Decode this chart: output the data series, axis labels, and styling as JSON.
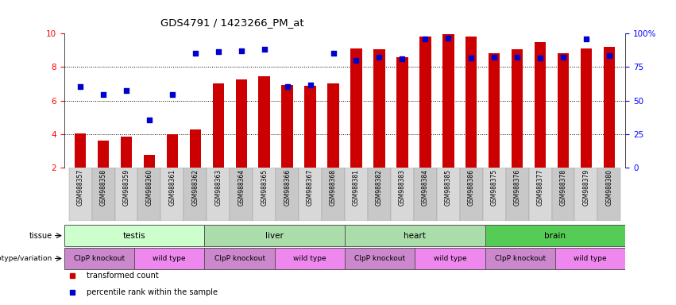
{
  "title": "GDS4791 / 1423266_PM_at",
  "samples": [
    "GSM988357",
    "GSM988358",
    "GSM988359",
    "GSM988360",
    "GSM988361",
    "GSM988362",
    "GSM988363",
    "GSM988364",
    "GSM988365",
    "GSM988366",
    "GSM988367",
    "GSM988368",
    "GSM988381",
    "GSM988382",
    "GSM988383",
    "GSM988384",
    "GSM988385",
    "GSM988386",
    "GSM988375",
    "GSM988376",
    "GSM988377",
    "GSM988378",
    "GSM988379",
    "GSM988380"
  ],
  "bar_values": [
    4.05,
    3.6,
    3.85,
    2.75,
    4.0,
    4.3,
    7.05,
    7.25,
    7.45,
    6.95,
    6.9,
    7.05,
    9.1,
    9.05,
    8.6,
    9.8,
    9.95,
    9.8,
    8.85,
    9.05,
    9.5,
    8.85,
    9.1,
    9.2
  ],
  "dot_values": [
    6.85,
    6.35,
    6.6,
    4.85,
    6.35,
    8.85,
    8.9,
    8.95,
    9.05,
    6.85,
    6.95,
    8.85,
    8.4,
    8.6,
    8.5,
    9.7,
    9.75,
    8.55,
    8.6,
    8.6,
    8.55,
    8.6,
    9.7,
    8.7
  ],
  "bar_color": "#cc0000",
  "dot_color": "#0000cc",
  "ylim_min": 2,
  "ylim_max": 10,
  "yticks": [
    2,
    4,
    6,
    8,
    10
  ],
  "dotted_lines": [
    4,
    6,
    8
  ],
  "y2ticks_vals": [
    0,
    25,
    50,
    75,
    100
  ],
  "y2tick_labels": [
    "0",
    "25",
    "50",
    "75",
    "100%"
  ],
  "tissue_groups": [
    {
      "label": "testis",
      "start": 0,
      "end": 6,
      "color": "#ccffcc"
    },
    {
      "label": "liver",
      "start": 6,
      "end": 12,
      "color": "#aaddaa"
    },
    {
      "label": "heart",
      "start": 12,
      "end": 18,
      "color": "#aaddaa"
    },
    {
      "label": "brain",
      "start": 18,
      "end": 24,
      "color": "#55cc55"
    }
  ],
  "genotype_groups": [
    {
      "label": "ClpP knockout",
      "start": 0,
      "end": 3,
      "color": "#cc88cc"
    },
    {
      "label": "wild type",
      "start": 3,
      "end": 6,
      "color": "#ee88ee"
    },
    {
      "label": "ClpP knockout",
      "start": 6,
      "end": 9,
      "color": "#cc88cc"
    },
    {
      "label": "wild type",
      "start": 9,
      "end": 12,
      "color": "#ee88ee"
    },
    {
      "label": "ClpP knockout",
      "start": 12,
      "end": 15,
      "color": "#cc88cc"
    },
    {
      "label": "wild type",
      "start": 15,
      "end": 18,
      "color": "#ee88ee"
    },
    {
      "label": "ClpP knockout",
      "start": 18,
      "end": 21,
      "color": "#cc88cc"
    },
    {
      "label": "wild type",
      "start": 21,
      "end": 24,
      "color": "#ee88ee"
    }
  ],
  "legend_items": [
    {
      "label": "transformed count",
      "color": "#cc0000"
    },
    {
      "label": "percentile rank within the sample",
      "color": "#0000cc"
    }
  ],
  "bar_width": 0.5,
  "xlabelstrip_color": "#c8c8c8",
  "xlabelstrip_alt_color": "#d8d8d8"
}
